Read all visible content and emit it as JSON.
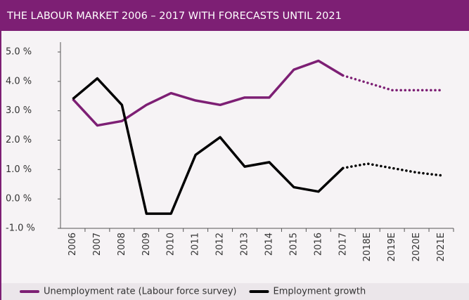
{
  "chart_data": {
    "type": "line",
    "title": "THE LABOUR MARKET 2006 – 2017 WITH FORECASTS UNTIL 2021",
    "categories": [
      "2006",
      "2007",
      "2008",
      "2009",
      "2010",
      "2011",
      "2012",
      "2013",
      "2014",
      "2015",
      "2016",
      "2017",
      "2018E",
      "2019E",
      "2020E",
      "2021E"
    ],
    "forecast_start": "2017",
    "series": [
      {
        "name": "Unemployment rate (Labour force survey)",
        "color": "#7d1f74",
        "values": [
          3.4,
          2.5,
          2.65,
          3.2,
          3.6,
          3.35,
          3.2,
          3.45,
          3.45,
          4.4,
          4.7,
          4.2,
          3.95,
          3.7,
          3.7,
          3.7
        ]
      },
      {
        "name": "Employment growth",
        "color": "#000000",
        "values": [
          3.4,
          4.1,
          3.2,
          -0.5,
          -0.5,
          1.5,
          2.1,
          1.1,
          1.25,
          0.4,
          0.25,
          1.05,
          1.2,
          1.05,
          0.9,
          0.8
        ]
      }
    ],
    "ylim": [
      -1,
      5
    ],
    "yticks": [
      {
        "value": -1,
        "label": "-1.0 %"
      },
      {
        "value": 0,
        "label": "0.0 %"
      },
      {
        "value": 1,
        "label": "1.0 %"
      },
      {
        "value": 2,
        "label": "2.0 %"
      },
      {
        "value": 3,
        "label": "3.0 %"
      },
      {
        "value": 4,
        "label": "4.0 %"
      },
      {
        "value": 5,
        "label": "5.0 %"
      }
    ],
    "grid": false,
    "legend": "bottom"
  }
}
